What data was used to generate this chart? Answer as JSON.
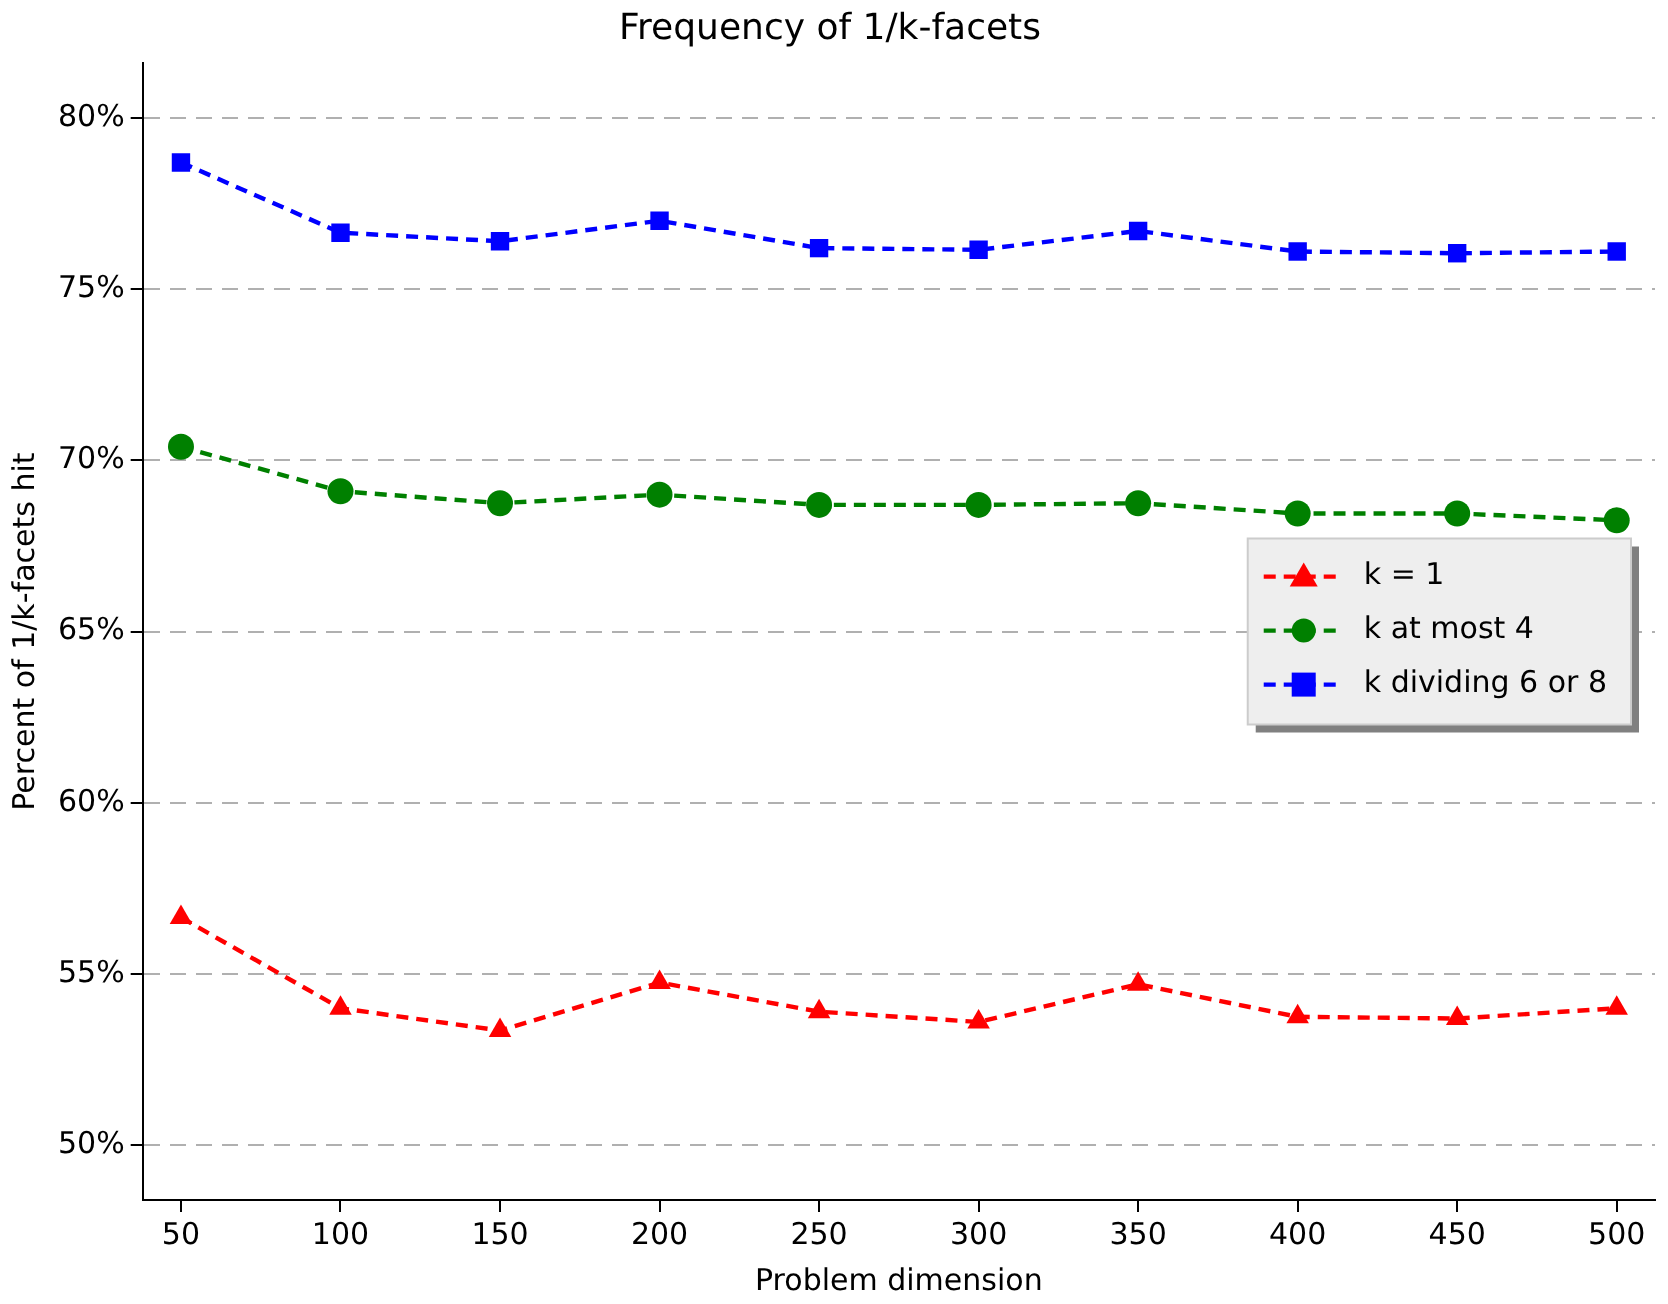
{
  "chart_data": {
    "type": "line",
    "title": "Frequency of 1/k-facets",
    "xlabel": "Problem dimension",
    "ylabel": "Percent of 1/k-facets hit",
    "x": [
      50,
      100,
      150,
      200,
      250,
      300,
      350,
      400,
      450,
      500
    ],
    "series": [
      {
        "name": "k = 1",
        "color": "#ff0000",
        "marker": "triangle",
        "values": [
          56.65,
          54.0,
          53.35,
          54.75,
          53.9,
          53.6,
          54.7,
          53.75,
          53.7,
          54.0
        ]
      },
      {
        "name": "k at most 4",
        "color": "#008000",
        "marker": "circle",
        "values": [
          70.4,
          69.1,
          68.75,
          69.0,
          68.7,
          68.7,
          68.75,
          68.45,
          68.45,
          68.25
        ]
      },
      {
        "name": "k dividing 6 or 8",
        "color": "#0000ff",
        "marker": "square",
        "values": [
          78.7,
          76.65,
          76.4,
          77.0,
          76.2,
          76.15,
          76.7,
          76.1,
          76.05,
          76.1
        ]
      }
    ],
    "xlim": [
      38,
      512
    ],
    "xticks": [
      50,
      100,
      150,
      200,
      250,
      300,
      350,
      400,
      450,
      500
    ],
    "ylim": [
      48.4,
      81.6
    ],
    "yticks": [
      {
        "value": 50,
        "label": "50%"
      },
      {
        "value": 55,
        "label": "55%"
      },
      {
        "value": 60,
        "label": "60%"
      },
      {
        "value": 65,
        "label": "65%"
      },
      {
        "value": 70,
        "label": "70%"
      },
      {
        "value": 75,
        "label": "75%"
      },
      {
        "value": 80,
        "label": "80%"
      }
    ],
    "grid": "y",
    "legend": "right",
    "line_style": "dashed"
  }
}
